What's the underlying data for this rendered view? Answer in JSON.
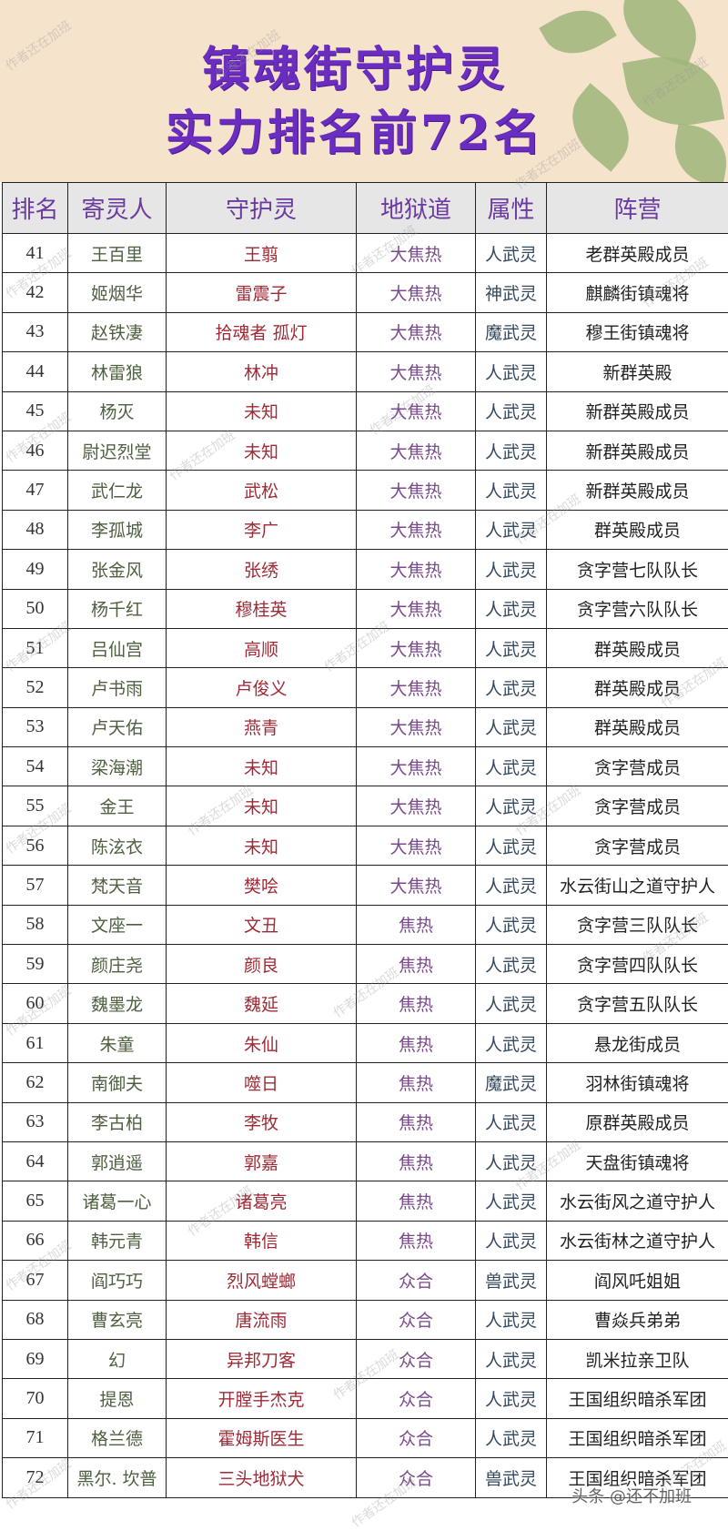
{
  "title": {
    "line1": "镇魂街守护灵",
    "line2": "实力排名前72名"
  },
  "watermark": "作者还在加班",
  "footer_watermark": "头条 @还不加班",
  "colors": {
    "title": "#6a2dbf",
    "banner_bg": "#f6e3cb",
    "header_text": "#6a3a9e",
    "header_bg": "#e6e6e6"
  },
  "table": {
    "headers": [
      "排名",
      "寄灵人",
      "守护灵",
      "地狱道",
      "属性",
      "阵营"
    ],
    "rows": [
      [
        "41",
        "王百里",
        "王翦",
        "大焦热",
        "人武灵",
        "老群英殿成员"
      ],
      [
        "42",
        "姬烟华",
        "雷震子",
        "大焦热",
        "神武灵",
        "麒麟街镇魂将"
      ],
      [
        "43",
        "赵铁凄",
        "拾魂者 孤灯",
        "大焦热",
        "魔武灵",
        "穆王街镇魂将"
      ],
      [
        "44",
        "林雷狼",
        "林冲",
        "大焦热",
        "人武灵",
        "新群英殿"
      ],
      [
        "45",
        "杨灭",
        "未知",
        "大焦热",
        "人武灵",
        "新群英殿成员"
      ],
      [
        "46",
        "尉迟烈堂",
        "未知",
        "大焦热",
        "人武灵",
        "新群英殿成员"
      ],
      [
        "47",
        "武仁龙",
        "武松",
        "大焦热",
        "人武灵",
        "新群英殿成员"
      ],
      [
        "48",
        "李孤城",
        "李广",
        "大焦热",
        "人武灵",
        "群英殿成员"
      ],
      [
        "49",
        "张金风",
        "张绣",
        "大焦热",
        "人武灵",
        "贪字营七队队长"
      ],
      [
        "50",
        "杨千红",
        "穆桂英",
        "大焦热",
        "人武灵",
        "贪字营六队队长"
      ],
      [
        "51",
        "吕仙宫",
        "高顺",
        "大焦热",
        "人武灵",
        "群英殿成员"
      ],
      [
        "52",
        "卢书雨",
        "卢俊义",
        "大焦热",
        "人武灵",
        "群英殿成员"
      ],
      [
        "53",
        "卢天佑",
        "燕青",
        "大焦热",
        "人武灵",
        "群英殿成员"
      ],
      [
        "54",
        "梁海潮",
        "未知",
        "大焦热",
        "人武灵",
        "贪字营成员"
      ],
      [
        "55",
        "金王",
        "未知",
        "大焦热",
        "人武灵",
        "贪字营成员"
      ],
      [
        "56",
        "陈泫衣",
        "未知",
        "大焦热",
        "人武灵",
        "贪字营成员"
      ],
      [
        "57",
        "梵天音",
        "樊哙",
        "大焦热",
        "人武灵",
        "水云街山之道守护人"
      ],
      [
        "58",
        "文座一",
        "文丑",
        "焦热",
        "人武灵",
        "贪字营三队队长"
      ],
      [
        "59",
        "颜庄尧",
        "颜良",
        "焦热",
        "人武灵",
        "贪字营四队队长"
      ],
      [
        "60",
        "魏墨龙",
        "魏延",
        "焦热",
        "人武灵",
        "贪字营五队队长"
      ],
      [
        "61",
        "朱童",
        "朱仙",
        "焦热",
        "人武灵",
        "悬龙街成员"
      ],
      [
        "62",
        "南御夫",
        "噬日",
        "焦热",
        "魔武灵",
        "羽林街镇魂将"
      ],
      [
        "63",
        "李古柏",
        "李牧",
        "焦热",
        "人武灵",
        "原群英殿成员"
      ],
      [
        "64",
        "郭逍遥",
        "郭嘉",
        "焦热",
        "人武灵",
        "天盘街镇魂将"
      ],
      [
        "65",
        "诸葛一心",
        "诸葛亮",
        "焦热",
        "人武灵",
        "水云街风之道守护人"
      ],
      [
        "66",
        "韩元青",
        "韩信",
        "焦热",
        "人武灵",
        "水云街林之道守护人"
      ],
      [
        "67",
        "阎巧巧",
        "烈风螳螂",
        "众合",
        "兽武灵",
        "阎风吒姐姐"
      ],
      [
        "68",
        "曹玄亮",
        "唐流雨",
        "众合",
        "人武灵",
        "曹焱兵弟弟"
      ],
      [
        "69",
        "幻",
        "异邦刀客",
        "众合",
        "人武灵",
        "凯米拉亲卫队"
      ],
      [
        "70",
        "提恩",
        "开膛手杰克",
        "众合",
        "人武灵",
        "王国组织暗杀军团"
      ],
      [
        "71",
        "格兰德",
        "霍姆斯医生",
        "众合",
        "人武灵",
        "王国组织暗杀军团"
      ],
      [
        "72",
        "黑尔. 坎普",
        "三头地狱犬",
        "众合",
        "兽武灵",
        "王国组织暗杀军团"
      ]
    ]
  }
}
